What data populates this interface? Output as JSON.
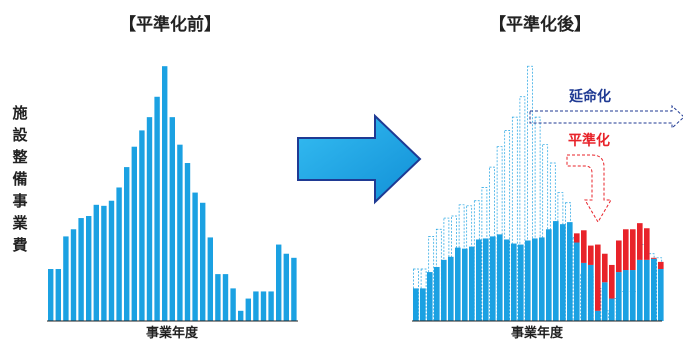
{
  "chart_data": [
    {
      "type": "bar",
      "title": "【平準化前】",
      "xlabel": "事業年度",
      "ylabel": "施設整備事業費",
      "values": [
        51,
        51,
        83,
        90,
        101,
        103,
        114,
        113,
        118,
        131,
        151,
        171,
        187,
        200,
        220,
        250,
        200,
        173,
        155,
        126,
        116,
        82,
        46,
        46,
        32,
        10,
        22,
        29,
        29,
        29,
        75,
        66,
        62
      ],
      "ylim": [
        0,
        260
      ],
      "color": "#1ba1e2"
    },
    {
      "type": "bar",
      "title": "【平準化後】",
      "xlabel": "事業年度",
      "ylabel": "",
      "values": [
        51,
        51,
        83,
        90,
        101,
        103,
        114,
        113,
        118,
        131,
        151,
        171,
        187,
        200,
        220,
        250,
        200,
        173,
        155,
        126,
        116,
        82,
        46,
        46,
        32,
        10,
        22,
        29,
        29,
        29,
        75,
        66,
        62
      ],
      "series": [
        {
          "name": "",
          "values": [
            32,
            32,
            48,
            53,
            60,
            63,
            72,
            71,
            73,
            80,
            81,
            83,
            85,
            80,
            76,
            75,
            79,
            81,
            82,
            90,
            98,
            95,
            97,
            77,
            57,
            55,
            10,
            38,
            22,
            48,
            50,
            50,
            60,
            60,
            61,
            51
          ]
        },
        {
          "name": "",
          "values": [
            0,
            0,
            0,
            0,
            0,
            0,
            0,
            0,
            0,
            0,
            0,
            0,
            0,
            0,
            0,
            0,
            0,
            0,
            0,
            0,
            0,
            0,
            0,
            9,
            32,
            19,
            65,
            28,
            33,
            31,
            40,
            40,
            36,
            31,
            1,
            7
          ]
        }
      ],
      "ylim": [
        0,
        260
      ],
      "colors": {
        "base": "#1ba1e2",
        "added": "#e8232a",
        "ghost": "#1ba1e2"
      }
    }
  ],
  "annotations": {
    "extend": "延命化",
    "level": "平準化"
  }
}
